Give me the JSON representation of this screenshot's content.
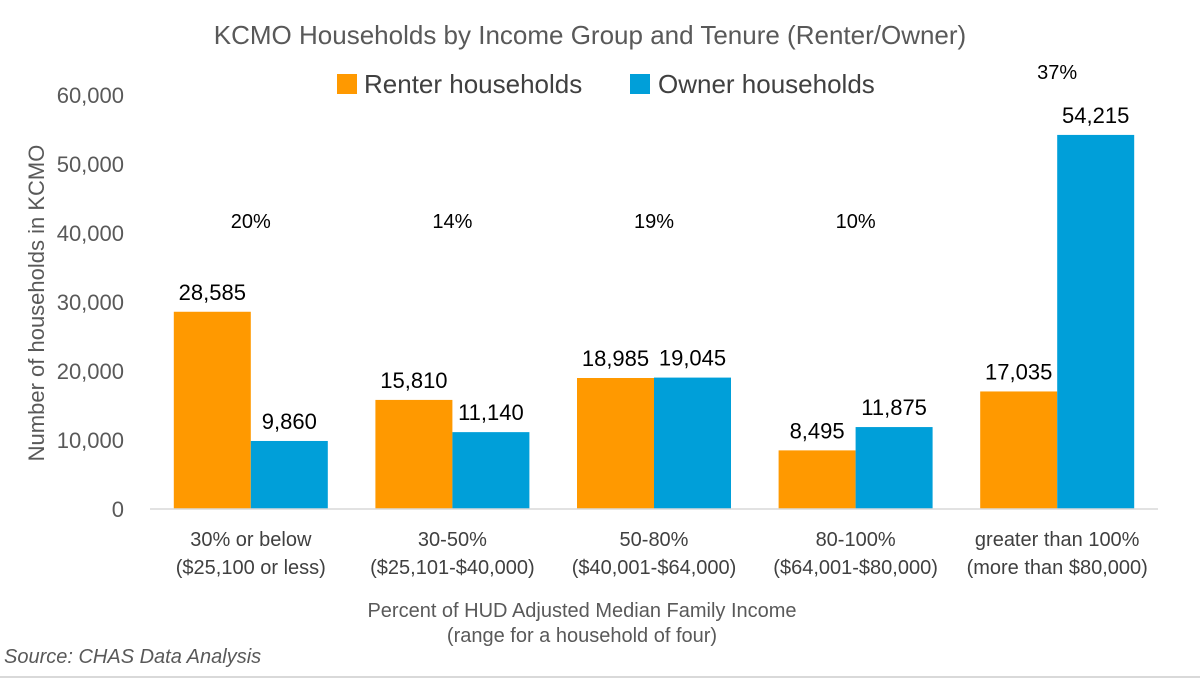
{
  "chart_data": {
    "type": "bar",
    "title": "KCMO Households by Income Group and Tenure (Renter/Owner)",
    "xlabel": [
      "Percent of HUD Adjusted Median Family Income",
      "(range for a household of four)"
    ],
    "ylabel": "Number of households in KCMO",
    "ylim": [
      0,
      60000
    ],
    "yticks": [
      0,
      10000,
      20000,
      30000,
      40000,
      50000,
      60000
    ],
    "ytick_labels": [
      "0",
      "10,000",
      "20,000",
      "30,000",
      "40,000",
      "50,000",
      "60,000"
    ],
    "grid": false,
    "legend_position": "top",
    "categories": [
      [
        "30% or below",
        "($25,100 or less)"
      ],
      [
        "30-50%",
        "($25,101-$40,000)"
      ],
      [
        "50-80%",
        "($40,001-$64,000)"
      ],
      [
        "80-100%",
        "($64,001-$80,000)"
      ],
      [
        "greater than 100%",
        "(more than $80,000)"
      ]
    ],
    "series": [
      {
        "name": "Renter households",
        "color": "#FF9900",
        "values": [
          28585,
          15810,
          18985,
          8495,
          17035
        ],
        "labels": [
          "28,585",
          "15,810",
          "18,985",
          "8,495",
          "17,035"
        ]
      },
      {
        "name": "Owner households",
        "color": "#009FD9",
        "values": [
          9860,
          11140,
          19045,
          11875,
          54215
        ],
        "labels": [
          "9,860",
          "11,140",
          "19,045",
          "11,875",
          "54,215"
        ]
      }
    ],
    "annotations": [
      "20%",
      "14%",
      "19%",
      "10%",
      "37%"
    ]
  },
  "source": "Source: CHAS Data Analysis"
}
